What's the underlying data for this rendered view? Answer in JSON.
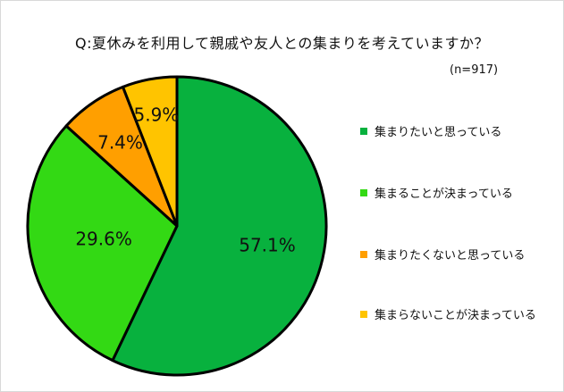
{
  "title": "Q:夏休みを利用して親戚や友人との集まりを考えていますか？",
  "note": "(n=917)",
  "chart_data": {
    "type": "pie",
    "title": "Q:夏休みを利用して親戚や友人との集まりを考えていますか？",
    "categories": [
      "集まりたいと思っている",
      "集まることが決まっている",
      "集まりたくないと思っている",
      "集まらないことが決まっている"
    ],
    "values": [
      57.1,
      29.6,
      7.4,
      5.9
    ],
    "labels": [
      "57.1%",
      "29.6%",
      "7.4%",
      "5.9%"
    ],
    "colors": [
      "#08b13e",
      "#33d914",
      "#ff9f00",
      "#ffc400"
    ],
    "legend_position": "right"
  }
}
